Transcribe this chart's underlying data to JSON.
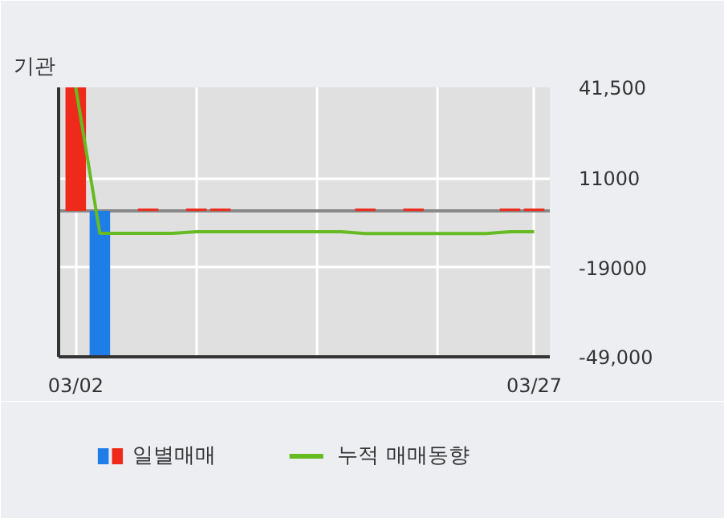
{
  "chart_data": {
    "type": "bar",
    "title": "기관",
    "categories": [
      "03/02",
      null,
      null,
      null,
      null,
      null,
      null,
      null,
      null,
      null,
      null,
      null,
      null,
      null,
      null,
      null,
      null,
      null,
      null,
      "03/27"
    ],
    "series": [
      {
        "name": "일별매매",
        "values": [
          41500,
          -49000,
          0,
          800,
          0,
          800,
          800,
          0,
          0,
          0,
          0,
          0,
          800,
          0,
          800,
          0,
          0,
          0,
          800,
          800
        ],
        "colors": [
          "#ee2a1a",
          "#1f7de8",
          "#ee2a1a",
          "#ee2a1a",
          "#ee2a1a",
          "#ee2a1a",
          "#ee2a1a",
          "#ee2a1a",
          "#ee2a1a",
          "#ee2a1a",
          "#ee2a1a",
          "#ee2a1a",
          "#ee2a1a",
          "#ee2a1a",
          "#ee2a1a",
          "#ee2a1a",
          "#ee2a1a",
          "#ee2a1a",
          "#ee2a1a",
          "#ee2a1a"
        ]
      },
      {
        "name": "누적 매매동향",
        "type": "line",
        "color": "#66bb22",
        "values": [
          41500,
          -7500,
          -7500,
          -7500,
          -7500,
          -7000,
          -7000,
          -7000,
          -7000,
          -7000,
          -7000,
          -7000,
          -7600,
          -7600,
          -7600,
          -7600,
          -7600,
          -7600,
          -7000,
          -7000
        ]
      }
    ],
    "ylim": [
      -49000,
      41500
    ],
    "yticks": [
      {
        "value": 41500,
        "label": "41,500"
      },
      {
        "value": 11000,
        "label": "11000"
      },
      {
        "value": -19000,
        "label": "-19000"
      },
      {
        "value": -49000,
        "label": "-49,000"
      }
    ],
    "ref_lines": [
      {
        "axis": "y",
        "value": 0,
        "color": "#888888"
      }
    ],
    "grid": true,
    "legend": "bottom"
  }
}
